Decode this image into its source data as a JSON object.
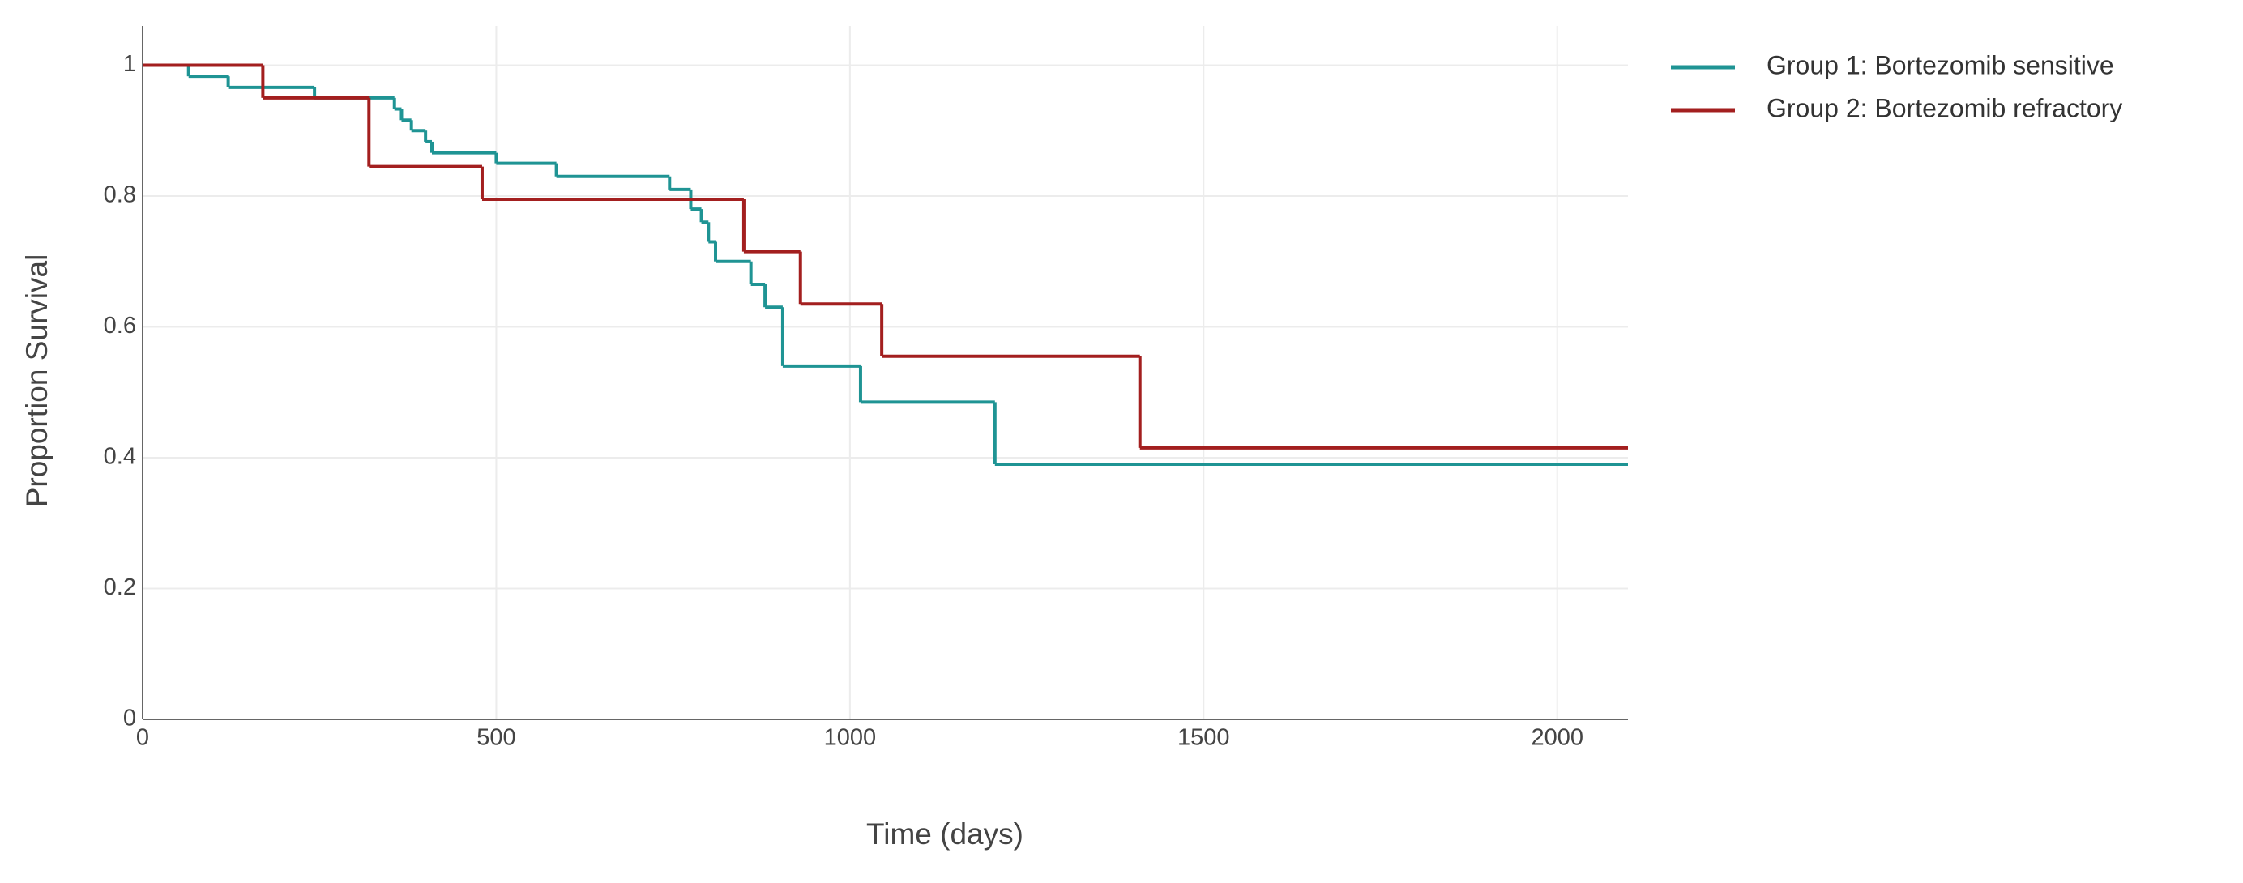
{
  "chart_data": {
    "type": "step",
    "x_label": "Time (days)",
    "y_label": "Proportion Survival",
    "xlim": [
      0,
      2100
    ],
    "ylim": [
      0,
      1.06
    ],
    "xticks": [
      0,
      500,
      1000,
      1500,
      2000
    ],
    "yticks": [
      0,
      0.2,
      0.4,
      0.6,
      0.8,
      1
    ],
    "grid": true,
    "legend": "right",
    "series": [
      {
        "name": "Group 1: Bortezomib sensitive",
        "color": "#1f9494",
        "x": [
          0,
          65,
          121,
          243,
          356,
          366,
          380,
          400,
          409,
          500,
          585,
          745,
          775,
          790,
          800,
          810,
          860,
          880,
          905,
          1015,
          1205
        ],
        "values": [
          1,
          0.983,
          0.966,
          0.95,
          0.933,
          0.916,
          0.9,
          0.883,
          0.866,
          0.85,
          0.83,
          0.81,
          0.78,
          0.76,
          0.73,
          0.7,
          0.665,
          0.63,
          0.54,
          0.485,
          0.39
        ]
      },
      {
        "name": "Group 2: Bortezomib refractory",
        "color": "#a31f1f",
        "x": [
          0,
          170,
          320,
          480,
          850,
          930,
          1045,
          1410
        ],
        "values": [
          1,
          0.95,
          0.845,
          0.795,
          0.715,
          0.635,
          0.555,
          0.415
        ]
      }
    ]
  }
}
